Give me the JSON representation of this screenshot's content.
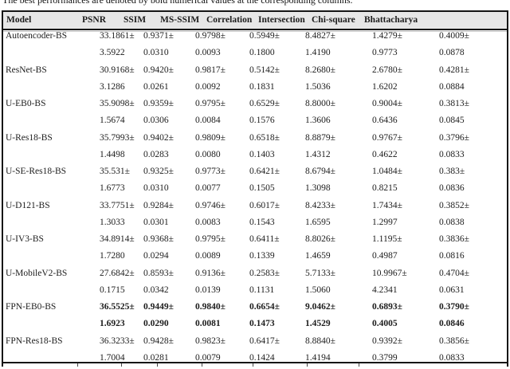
{
  "caption": "The best performances are denoted by bold numerical values at the corresponding columns.",
  "colors": {
    "header_bg": "#e7e7e7",
    "border": "#161616",
    "text": "#1c1c1c"
  },
  "table": {
    "columns": [
      "Model",
      "PSNR",
      "SSIM",
      "MS-SSIM",
      "Correlation",
      "Intersection",
      "Chi-square",
      "Bhattacharya"
    ],
    "rows": [
      {
        "model": "Autoencoder-BS",
        "bold": false,
        "values": [
          [
            "33.1861±",
            "3.5922"
          ],
          [
            "0.9371±",
            "0.0310"
          ],
          [
            "0.9798±",
            "0.0093"
          ],
          [
            "0.5949±",
            "0.1800"
          ],
          [
            "8.4827±",
            "1.4190"
          ],
          [
            "1.4279±",
            "0.9773"
          ],
          [
            "0.4009±",
            "0.0878"
          ]
        ]
      },
      {
        "model": "ResNet-BS",
        "bold": false,
        "values": [
          [
            "30.9168±",
            "3.1286"
          ],
          [
            "0.9420±",
            "0.0261"
          ],
          [
            "0.9817±",
            "0.0092"
          ],
          [
            "0.5142±",
            "0.1831"
          ],
          [
            "8.2680±",
            "1.5036"
          ],
          [
            "2.6780±",
            "1.6202"
          ],
          [
            "0.4281±",
            "0.0884"
          ]
        ]
      },
      {
        "model": "U-EB0-BS",
        "bold": false,
        "values": [
          [
            "35.9098±",
            "1.5674"
          ],
          [
            "0.9359±",
            "0.0306"
          ],
          [
            "0.9795±",
            "0.0084"
          ],
          [
            "0.6529±",
            "0.1576"
          ],
          [
            "8.8000±",
            "1.3606"
          ],
          [
            "0.9004±",
            "0.6436"
          ],
          [
            "0.3813±",
            "0.0845"
          ]
        ]
      },
      {
        "model": "U-Res18-BS",
        "bold": false,
        "values": [
          [
            "35.7993±",
            "1.4498"
          ],
          [
            "0.9402±",
            "0.0283"
          ],
          [
            "0.9809±",
            "0.0080"
          ],
          [
            "0.6518±",
            "0.1403"
          ],
          [
            "8.8879±",
            "1.4312"
          ],
          [
            "0.9767±",
            "0.4622"
          ],
          [
            "0.3796±",
            "0.0833"
          ]
        ]
      },
      {
        "model": "U-SE-Res18-BS",
        "bold": false,
        "values": [
          [
            "35.531±",
            "1.6773"
          ],
          [
            "0.9325±",
            "0.0310"
          ],
          [
            "0.9773±",
            "0.0077"
          ],
          [
            "0.6421±",
            "0.1505"
          ],
          [
            "8.6794±",
            "1.3098"
          ],
          [
            "1.0484±",
            "0.8215"
          ],
          [
            "0.383±",
            "0.0836"
          ]
        ]
      },
      {
        "model": "U-D121-BS",
        "bold": false,
        "values": [
          [
            "33.7751±",
            "1.3033"
          ],
          [
            "0.9284±",
            "0.0301"
          ],
          [
            "0.9746±",
            "0.0083"
          ],
          [
            "0.6017±",
            "0.1543"
          ],
          [
            "8.4233±",
            "1.6595"
          ],
          [
            "1.7434±",
            "1.2997"
          ],
          [
            "0.3852±",
            "0.0838"
          ]
        ]
      },
      {
        "model": "U-IV3-BS",
        "bold": false,
        "values": [
          [
            "34.8914±",
            "1.7280"
          ],
          [
            "0.9368±",
            "0.0294"
          ],
          [
            "0.9795±",
            "0.0089"
          ],
          [
            "0.6411±",
            "0.1339"
          ],
          [
            "8.8026±",
            "1.4659"
          ],
          [
            "1.1195±",
            "0.4987"
          ],
          [
            "0.3836±",
            "0.0816"
          ]
        ]
      },
      {
        "model": "U-MobileV2-BS",
        "bold": false,
        "values": [
          [
            "27.6842±",
            "0.1715"
          ],
          [
            "0.8593±",
            "0.0342"
          ],
          [
            "0.9136±",
            "0.0139"
          ],
          [
            "0.2583±",
            "0.1131"
          ],
          [
            "5.7133±",
            "1.5060"
          ],
          [
            "10.9967±",
            "4.2341"
          ],
          [
            "0.4704±",
            "0.0631"
          ]
        ]
      },
      {
        "model": "FPN-EB0-BS",
        "bold": true,
        "values": [
          [
            "36.5525±",
            "1.6923"
          ],
          [
            "0.9449±",
            "0.0290"
          ],
          [
            "0.9840±",
            "0.0081"
          ],
          [
            "0.6654±",
            "0.1473"
          ],
          [
            "9.0462±",
            "1.4529"
          ],
          [
            "0.6893±",
            "0.4005"
          ],
          [
            "0.3790±",
            "0.0846"
          ]
        ]
      },
      {
        "model": "FPN-Res18-BS",
        "bold": false,
        "values": [
          [
            "36.3233±",
            "1.7004"
          ],
          [
            "0.9428±",
            "0.0281"
          ],
          [
            "0.9823±",
            "0.0079"
          ],
          [
            "0.6417±",
            "0.1424"
          ],
          [
            "8.8840±",
            "1.4194"
          ],
          [
            "0.9392±",
            "0.3799"
          ],
          [
            "0.3856±",
            "0.0833"
          ]
        ]
      }
    ]
  }
}
